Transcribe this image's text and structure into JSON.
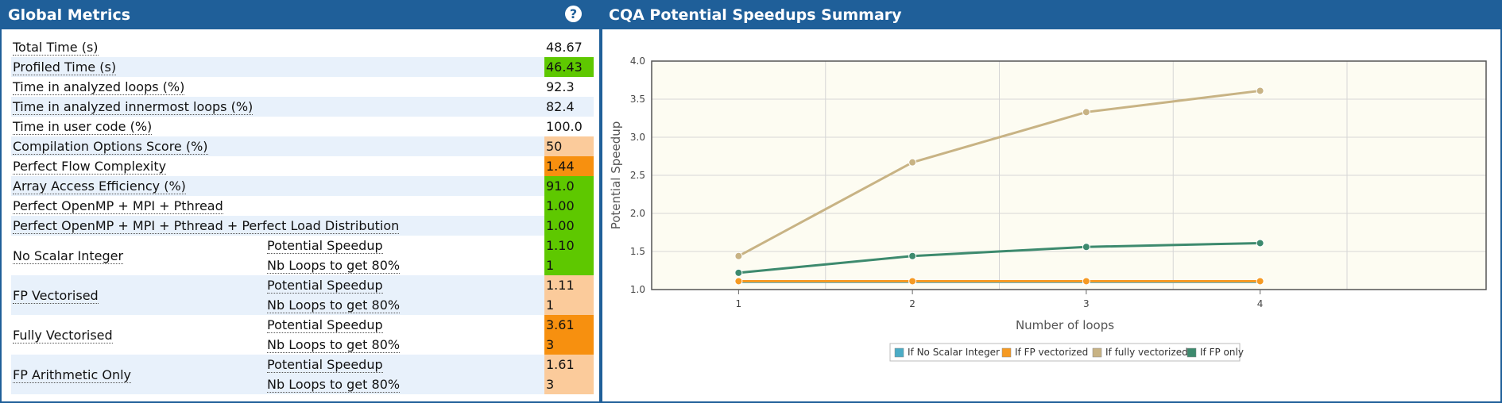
{
  "left_panel": {
    "title": "Global Metrics",
    "help_icon": "question-circle-icon",
    "rows": [
      {
        "name": "Total Time (s)",
        "value": "48.67",
        "status": "none"
      },
      {
        "name": "Profiled Time (s)",
        "value": "46.43",
        "status": "green"
      },
      {
        "name": "Time in analyzed loops (%)",
        "value": "92.3",
        "status": "none"
      },
      {
        "name": "Time in analyzed innermost loops (%)",
        "value": "82.4",
        "status": "none"
      },
      {
        "name": "Time in user code (%)",
        "value": "100.0",
        "status": "none"
      },
      {
        "name": "Compilation Options Score (%)",
        "value": "50",
        "status": "peach"
      },
      {
        "name": "Perfect Flow Complexity",
        "value": "1.44",
        "status": "orange"
      },
      {
        "name": "Array Access Efficiency (%)",
        "value": "91.0",
        "status": "green"
      },
      {
        "name": "Perfect OpenMP + MPI + Pthread",
        "value": "1.00",
        "status": "green"
      },
      {
        "name": "Perfect OpenMP + MPI + Pthread + Perfect Load Distribution",
        "value": "1.00",
        "status": "green"
      }
    ],
    "groups": [
      {
        "name": "No Scalar Integer",
        "potential_label": "Potential Speedup",
        "potential_value": "1.10",
        "loops_label": "Nb Loops to get 80%",
        "loops_value": "1",
        "status": "green"
      },
      {
        "name": "FP Vectorised",
        "potential_label": "Potential Speedup",
        "potential_value": "1.11",
        "loops_label": "Nb Loops to get 80%",
        "loops_value": "1",
        "status": "peach"
      },
      {
        "name": "Fully Vectorised",
        "potential_label": "Potential Speedup",
        "potential_value": "3.61",
        "loops_label": "Nb Loops to get 80%",
        "loops_value": "3",
        "status": "orange"
      },
      {
        "name": "FP Arithmetic Only",
        "potential_label": "Potential Speedup",
        "potential_value": "1.61",
        "loops_label": "Nb Loops to get 80%",
        "loops_value": "3",
        "status": "peach"
      }
    ]
  },
  "right_panel": {
    "title": "CQA Potential Speedups Summary"
  },
  "colors": {
    "header": "#1f5f99",
    "green": "#5ec800",
    "orange": "#f7900f",
    "peach": "#fbcb9b",
    "row_alt": "#e8f1fb",
    "plot_bg": "#fdfcf2"
  },
  "chart_data": {
    "type": "line",
    "x": [
      1,
      2,
      3,
      4
    ],
    "xlabel": "Number of loops",
    "ylabel": "Potential Speedup",
    "ylim": [
      1.0,
      4.0
    ],
    "yticks": [
      "1.0",
      "1.5",
      "2.0",
      "2.5",
      "3.0",
      "3.5",
      "4.0"
    ],
    "grid": true,
    "legend_position": "bottom-center",
    "series": [
      {
        "name": "If No Scalar Integer",
        "color": "#4bacc6",
        "values": [
          1.1,
          1.1,
          1.1,
          1.1
        ]
      },
      {
        "name": "If FP vectorized",
        "color": "#f59a23",
        "values": [
          1.11,
          1.11,
          1.11,
          1.11
        ]
      },
      {
        "name": "If fully vectorized",
        "color": "#c8b384",
        "values": [
          1.44,
          2.67,
          3.33,
          3.61
        ]
      },
      {
        "name": "If FP only",
        "color": "#3d8a6e",
        "values": [
          1.22,
          1.44,
          1.56,
          1.61
        ]
      }
    ]
  }
}
